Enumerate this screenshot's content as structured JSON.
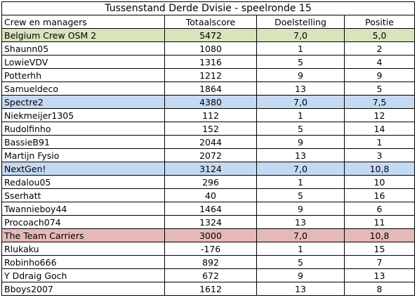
{
  "title": "Tussenstand Derde Dvisie - speelronde 15",
  "headers": [
    "Crew en managers",
    "Totaalscore",
    "Doelstelling",
    "Positie"
  ],
  "groups": [
    {
      "name": "Belgium Crew OSM 2",
      "total": "5472",
      "target": "7,0",
      "position": "5,0",
      "color": "#d8e4bc",
      "members": [
        {
          "name": "Shaunn05",
          "total": "1080",
          "target": "1",
          "position": "2"
        },
        {
          "name": "LowieVDV",
          "total": "1316",
          "target": "5",
          "position": "4"
        },
        {
          "name": "Potterhh",
          "total": "1212",
          "target": "9",
          "position": "9"
        },
        {
          "name": "Samueldeco",
          "total": "1864",
          "target": "13",
          "position": "5"
        }
      ]
    },
    {
      "name": "Spectre2",
      "total": "4380",
      "target": "7,0",
      "position": "7,5",
      "color": "#c5d9f1",
      "members": [
        {
          "name": "Niekmeijer1305",
          "total": "112",
          "target": "1",
          "position": "12"
        },
        {
          "name": "Rudolfinho",
          "total": "152",
          "target": "5",
          "position": "14"
        },
        {
          "name": "BassieB91",
          "total": "2044",
          "target": "9",
          "position": "1"
        },
        {
          "name": "Martijn Fysio",
          "total": "2072",
          "target": "13",
          "position": "3"
        }
      ]
    },
    {
      "name": "NextGen!",
      "total": "3124",
      "target": "7,0",
      "position": "10,8",
      "color": "#c5d9f1",
      "members": [
        {
          "name": "Redalou05",
          "total": "296",
          "target": "1",
          "position": "10"
        },
        {
          "name": "Sserhatt",
          "total": "40",
          "target": "5",
          "position": "16"
        },
        {
          "name": "Twannieboy44",
          "total": "1464",
          "target": "9",
          "position": "6"
        },
        {
          "name": "Procoach074",
          "total": "1324",
          "target": "13",
          "position": "11"
        }
      ]
    },
    {
      "name": "The Team Carriers",
      "total": "3000",
      "target": "7,0",
      "position": "10,8",
      "color": "#e6b8b7",
      "members": [
        {
          "name": "Rlukaku",
          "total": "-176",
          "target": "1",
          "position": "15"
        },
        {
          "name": "Robinho666",
          "total": "892",
          "target": "5",
          "position": "7"
        },
        {
          "name": "Y Ddraig Goch",
          "total": "672",
          "target": "9",
          "position": "13"
        },
        {
          "name": "Bboys2007",
          "total": "1612",
          "target": "13",
          "position": "8"
        }
      ]
    }
  ]
}
